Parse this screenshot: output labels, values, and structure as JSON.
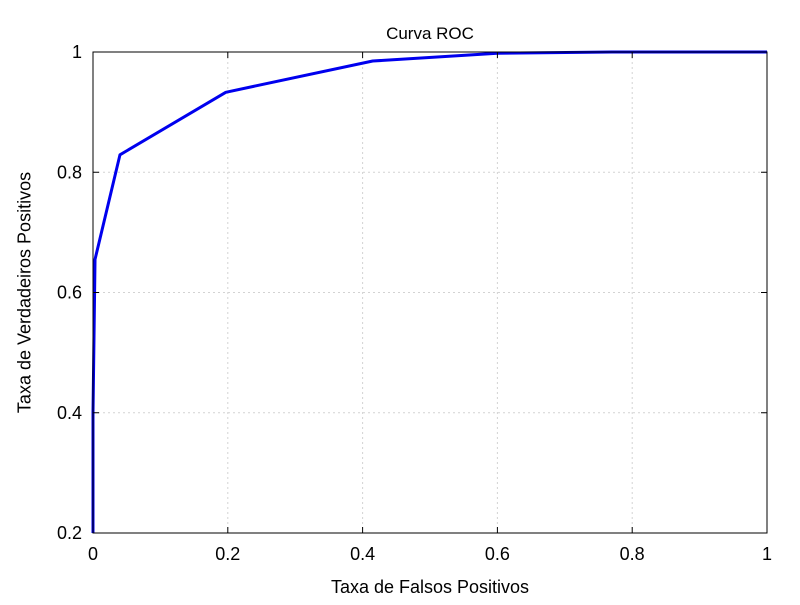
{
  "chart_data": {
    "type": "line",
    "title": "Curva ROC",
    "xlabel": "Taxa de Falsos Positivos",
    "ylabel": "Taxa de Verdadeiros Positivos",
    "xlim": [
      0,
      1
    ],
    "ylim": [
      0.2,
      1
    ],
    "x_ticks": [
      0,
      0.2,
      0.4,
      0.6,
      0.8,
      1
    ],
    "x_tick_labels": [
      "0",
      "0.2",
      "0.4",
      "0.6",
      "0.8",
      "1"
    ],
    "y_ticks": [
      0.2,
      0.4,
      0.6,
      0.8,
      1
    ],
    "y_tick_labels": [
      "0.2",
      "0.4",
      "0.6",
      "0.8",
      "1"
    ],
    "grid": true,
    "series": [
      {
        "color": "#0000ee",
        "x": [
          0,
          0,
          0.003,
          0.04,
          0.197,
          0.415,
          0.6,
          0.77,
          1.0
        ],
        "y": [
          0.2,
          0.4,
          0.655,
          0.829,
          0.933,
          0.985,
          0.998,
          1.0,
          1.0
        ]
      }
    ]
  }
}
